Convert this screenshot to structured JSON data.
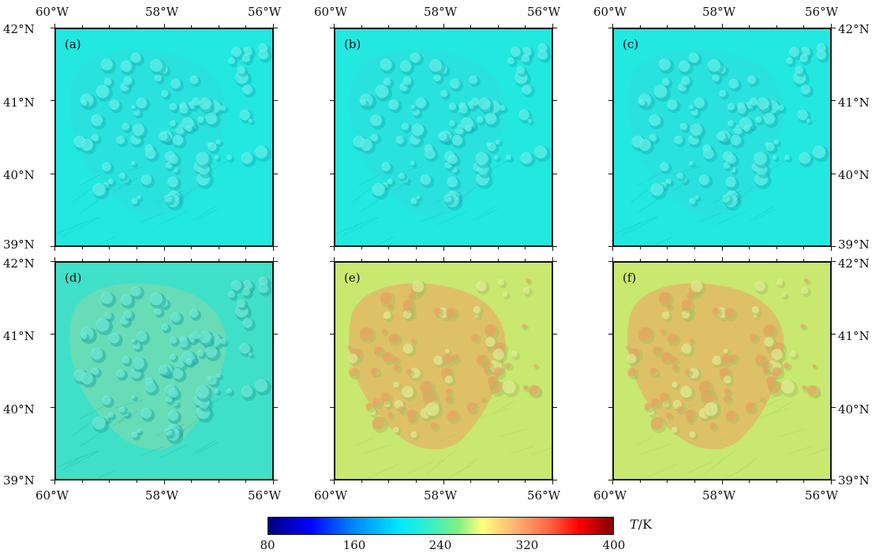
{
  "maps": [
    {
      "label": "(a)",
      "variant": "cool"
    },
    {
      "label": "(b)",
      "variant": "cool"
    },
    {
      "label": "(c)",
      "variant": "cool"
    },
    {
      "label": "(d)",
      "variant": "mild"
    },
    {
      "label": "(e)",
      "variant": "warm"
    },
    {
      "label": "(f)",
      "variant": "warm"
    }
  ],
  "axes": {
    "lon_ticks": [
      "60°W",
      "58°W",
      "56°W"
    ],
    "lat_ticks": [
      "42°N",
      "41°N",
      "40°N",
      "39°N"
    ]
  },
  "colorbar": {
    "ticks": [
      "80",
      "160",
      "240",
      "320",
      "400"
    ],
    "unit_var": "T",
    "unit_rest": "/K",
    "range": [
      80,
      400
    ],
    "colormap": "jet"
  },
  "colors": {
    "cool_base": "#22e8e0",
    "mild_base": "#40e0c8",
    "warm_base": "#c8e870",
    "warm_hot": "#f0a060"
  }
}
